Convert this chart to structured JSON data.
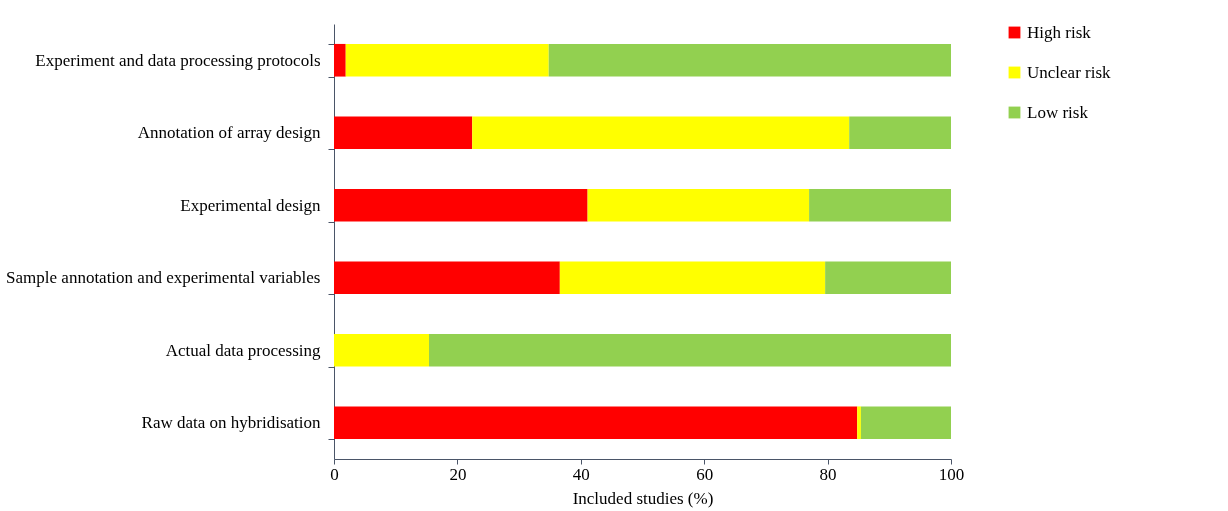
{
  "chart_data": {
    "type": "bar",
    "orientation": "horizontal",
    "stacked": true,
    "xlabel": "Included studies (%)",
    "categories": [
      "Experiment and data processing protocols",
      "Annotation of array design",
      "Experimental design",
      "Sample annotation and experimental variables",
      "Actual data processing",
      "Raw data on hybridisation"
    ],
    "series": [
      {
        "name": "High risk",
        "color": "#ff0000",
        "values": [
          1.9,
          22.4,
          41.1,
          36.6,
          0,
          84.8
        ]
      },
      {
        "name": "Unclear risk",
        "color": "#ffff00",
        "values": [
          32.9,
          61.1,
          35.9,
          43.0,
          15.4,
          0.6
        ]
      },
      {
        "name": "Low risk",
        "color": "#92d050",
        "values": [
          65.2,
          16.5,
          23.0,
          20.4,
          84.6,
          14.6
        ]
      }
    ],
    "xlim": [
      0,
      100
    ],
    "xticks": [
      0,
      20,
      40,
      60,
      80,
      100
    ],
    "grid": false,
    "legend": "right"
  }
}
